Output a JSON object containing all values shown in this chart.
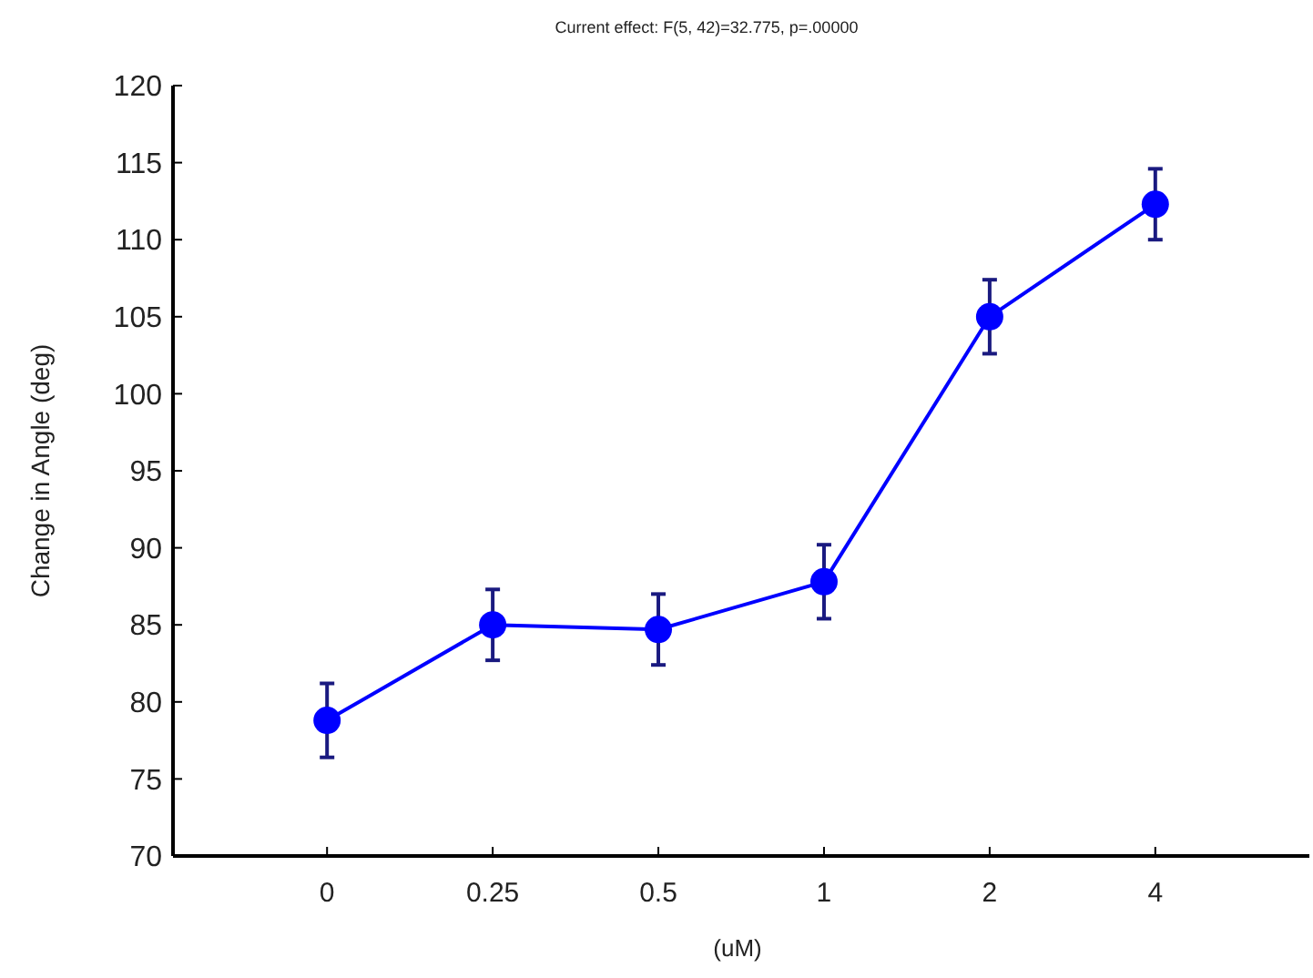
{
  "chart_data": {
    "type": "line",
    "title": "Current effect: F(5, 42)=32.775, p=.00000",
    "xlabel": "(uM)",
    "ylabel": "Change in Angle (deg)",
    "categories": [
      "0",
      "0.25",
      "0.5",
      "1",
      "2",
      "4"
    ],
    "series": [
      {
        "color": "#0000ff",
        "values": [
          78.8,
          85.0,
          84.7,
          87.8,
          105.0,
          112.3
        ],
        "errors": [
          2.4,
          2.3,
          2.3,
          2.4,
          2.4,
          2.3
        ]
      }
    ],
    "ylim": [
      70,
      120
    ],
    "yticks": [
      70,
      75,
      80,
      85,
      90,
      95,
      100,
      105,
      110,
      115,
      120
    ],
    "marker": "circle",
    "line_style": "solid"
  }
}
